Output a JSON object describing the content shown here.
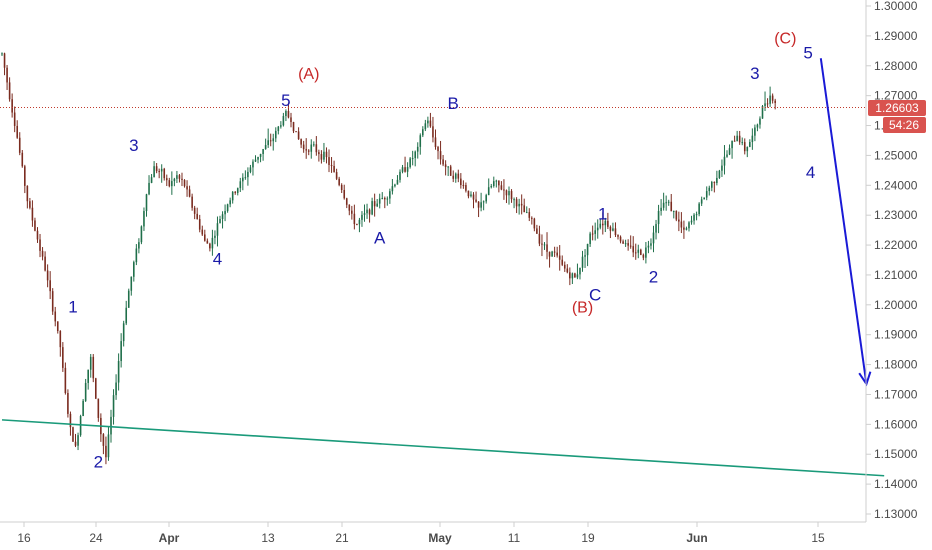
{
  "chart_data": {
    "type": "candlestick",
    "y_axis": {
      "ticks": [
        "1.30000",
        "1.29000",
        "1.28000",
        "1.27000",
        "1.26000",
        "1.25000",
        "1.24000",
        "1.23000",
        "1.22000",
        "1.21000",
        "1.20000",
        "1.19000",
        "1.18000",
        "1.17000",
        "1.16000",
        "1.15000",
        "1.14000",
        "1.13000"
      ],
      "range": [
        1.126,
        1.302
      ],
      "position": "right"
    },
    "x_axis": {
      "ticks": [
        {
          "label": "16",
          "bold": false
        },
        {
          "label": "24",
          "bold": false
        },
        {
          "label": "Apr",
          "bold": true
        },
        {
          "label": "13",
          "bold": false
        },
        {
          "label": "21",
          "bold": false
        },
        {
          "label": "May",
          "bold": true
        },
        {
          "label": "11",
          "bold": false
        },
        {
          "label": "19",
          "bold": false
        },
        {
          "label": "Jun",
          "bold": true
        },
        {
          "label": "15",
          "bold": false
        }
      ]
    },
    "price_path": [
      [
        0,
        1.284
      ],
      [
        3,
        1.27
      ],
      [
        6,
        1.256
      ],
      [
        10,
        1.235
      ],
      [
        14,
        1.222
      ],
      [
        17,
        1.212
      ],
      [
        20,
        1.199
      ],
      [
        23,
        1.186
      ],
      [
        25,
        1.17
      ],
      [
        27,
        1.158
      ],
      [
        29,
        1.152
      ],
      [
        31,
        1.163
      ],
      [
        33,
        1.175
      ],
      [
        35,
        1.182
      ],
      [
        37,
        1.168
      ],
      [
        39,
        1.157
      ],
      [
        41,
        1.149
      ],
      [
        43,
        1.162
      ],
      [
        45,
        1.175
      ],
      [
        47,
        1.188
      ],
      [
        49,
        1.2
      ],
      [
        52,
        1.214
      ],
      [
        55,
        1.226
      ],
      [
        57,
        1.238
      ],
      [
        60,
        1.246
      ],
      [
        63,
        1.244
      ],
      [
        66,
        1.24
      ],
      [
        69,
        1.243
      ],
      [
        72,
        1.24
      ],
      [
        75,
        1.233
      ],
      [
        78,
        1.226
      ],
      [
        80,
        1.221
      ],
      [
        82,
        1.22
      ],
      [
        84,
        1.224
      ],
      [
        86,
        1.229
      ],
      [
        89,
        1.234
      ],
      [
        92,
        1.238
      ],
      [
        95,
        1.242
      ],
      [
        98,
        1.246
      ],
      [
        101,
        1.25
      ],
      [
        104,
        1.253
      ],
      [
        107,
        1.256
      ],
      [
        110,
        1.261
      ],
      [
        112,
        1.264
      ],
      [
        114,
        1.262
      ],
      [
        116,
        1.257
      ],
      [
        119,
        1.252
      ],
      [
        122,
        1.253
      ],
      [
        125,
        1.251
      ],
      [
        128,
        1.249
      ],
      [
        131,
        1.244
      ],
      [
        134,
        1.239
      ],
      [
        136,
        1.234
      ],
      [
        138,
        1.229
      ],
      [
        140,
        1.227
      ],
      [
        143,
        1.23
      ],
      [
        146,
        1.233
      ],
      [
        149,
        1.235
      ],
      [
        152,
        1.237
      ],
      [
        155,
        1.241
      ],
      [
        158,
        1.245
      ],
      [
        161,
        1.248
      ],
      [
        164,
        1.252
      ],
      [
        166,
        1.259
      ],
      [
        168,
        1.262
      ],
      [
        170,
        1.256
      ],
      [
        173,
        1.249
      ],
      [
        176,
        1.245
      ],
      [
        179,
        1.243
      ],
      [
        182,
        1.24
      ],
      [
        185,
        1.236
      ],
      [
        188,
        1.232
      ],
      [
        191,
        1.237
      ],
      [
        194,
        1.241
      ],
      [
        197,
        1.239
      ],
      [
        200,
        1.237
      ],
      [
        203,
        1.234
      ],
      [
        206,
        1.231
      ],
      [
        209,
        1.228
      ],
      [
        212,
        1.222
      ],
      [
        215,
        1.218
      ],
      [
        218,
        1.217
      ],
      [
        221,
        1.213
      ],
      [
        224,
        1.21
      ],
      [
        226,
        1.209
      ],
      [
        228,
        1.213
      ],
      [
        230,
        1.218
      ],
      [
        232,
        1.223
      ],
      [
        235,
        1.227
      ],
      [
        238,
        1.228
      ],
      [
        241,
        1.225
      ],
      [
        244,
        1.222
      ],
      [
        247,
        1.219
      ],
      [
        250,
        1.218
      ],
      [
        253,
        1.217
      ],
      [
        256,
        1.222
      ],
      [
        258,
        1.228
      ],
      [
        260,
        1.234
      ],
      [
        263,
        1.234
      ],
      [
        266,
        1.229
      ],
      [
        269,
        1.224
      ],
      [
        272,
        1.228
      ],
      [
        275,
        1.233
      ],
      [
        278,
        1.238
      ],
      [
        281,
        1.242
      ],
      [
        284,
        1.247
      ],
      [
        287,
        1.252
      ],
      [
        290,
        1.257
      ],
      [
        293,
        1.252
      ],
      [
        296,
        1.256
      ],
      [
        299,
        1.263
      ],
      [
        301,
        1.268
      ],
      [
        303,
        1.27
      ],
      [
        305,
        1.268
      ]
    ],
    "last_price": {
      "label": "1.26603",
      "countdown": "54:26",
      "value": 1.26603
    },
    "trendline": {
      "from": [
        0,
        1.1615
      ],
      "to": [
        348,
        1.1428
      ]
    },
    "projection_arrow": {
      "from": [
        323,
        1.2825
      ],
      "to": [
        341,
        1.1735
      ]
    },
    "wave_labels": [
      {
        "text": "1",
        "x": 28,
        "y": 1.1975,
        "color": "blue"
      },
      {
        "text": "2",
        "x": 38,
        "y": 1.1455,
        "color": "blue"
      },
      {
        "text": "3",
        "x": 52,
        "y": 1.2515,
        "color": "blue"
      },
      {
        "text": "4",
        "x": 85,
        "y": 1.2135,
        "color": "blue"
      },
      {
        "text": "5",
        "x": 112,
        "y": 1.2665,
        "color": "blue"
      },
      {
        "text": "(A)",
        "x": 121,
        "y": 1.2755,
        "color": "red"
      },
      {
        "text": "A",
        "x": 149,
        "y": 1.2205,
        "color": "blue"
      },
      {
        "text": "B",
        "x": 178,
        "y": 1.2655,
        "color": "blue"
      },
      {
        "text": "1",
        "x": 237,
        "y": 1.2285,
        "color": "blue"
      },
      {
        "text": "2",
        "x": 257,
        "y": 1.2075,
        "color": "blue"
      },
      {
        "text": "C",
        "x": 234,
        "y": 1.2015,
        "color": "blue"
      },
      {
        "text": "(B)",
        "x": 229,
        "y": 1.1975,
        "color": "red"
      },
      {
        "text": "3",
        "x": 297,
        "y": 1.2755,
        "color": "blue"
      },
      {
        "text": "(C)",
        "x": 309,
        "y": 1.2875,
        "color": "red"
      },
      {
        "text": "5",
        "x": 318,
        "y": 1.2825,
        "color": "blue"
      },
      {
        "text": "4",
        "x": 319,
        "y": 1.2425,
        "color": "blue"
      }
    ]
  },
  "colors": {
    "up": "#1f6f4a",
    "down": "#7a2b1f",
    "trendline": "#1a9a7a",
    "arrow": "#1a1ad6",
    "price_line": "#c0392b",
    "badge": "#d9534f",
    "wave_blue": "#1a1aa8",
    "wave_red": "#c62828",
    "axis_text": "#4a4a4a",
    "axis_line": "#cfcfcf"
  }
}
